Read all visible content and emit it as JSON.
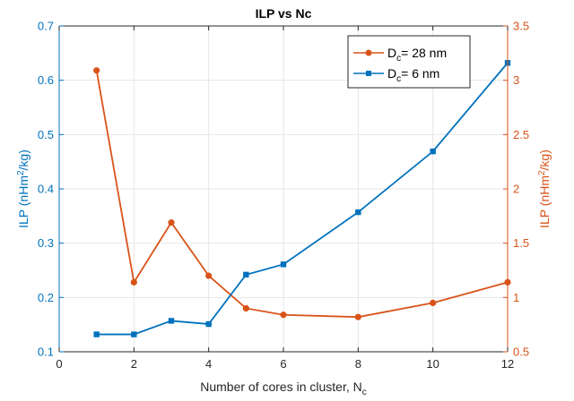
{
  "chart_data": {
    "type": "line",
    "title": "ILP vs Nc",
    "xlabel": {
      "main": "Number of cores in cluster, N",
      "sub": "c"
    },
    "ylabel_left": {
      "pre": "ILP (nHm",
      "sup": "2",
      "post": "/kg)"
    },
    "ylabel_right": {
      "pre": "ILP (nHm",
      "sup": "2",
      "post": "/kg)"
    },
    "xlim": [
      0,
      12
    ],
    "ylim_left": [
      0.1,
      0.7
    ],
    "ylim_right": [
      0.5,
      3.5
    ],
    "xticks": [
      0,
      2,
      4,
      6,
      8,
      10,
      12
    ],
    "yticks_left": [
      0.1,
      0.2,
      0.3,
      0.4,
      0.5,
      0.6,
      0.7
    ],
    "yticks_right": [
      0.5,
      1,
      1.5,
      2,
      2.5,
      3,
      3.5
    ],
    "grid": true,
    "legend_position": "top-right",
    "series": [
      {
        "name": {
          "pre": "D",
          "sub": "c",
          "post": "= 28 nm"
        },
        "axis": "right",
        "color": "#D95319",
        "marker": "circle",
        "x": [
          1,
          2,
          3,
          4,
          5,
          6,
          8,
          10,
          12
        ],
        "y": [
          3.09,
          1.14,
          1.69,
          1.2,
          0.9,
          0.84,
          0.82,
          0.95,
          1.14
        ]
      },
      {
        "name": {
          "pre": "D",
          "sub": "c",
          "post": "= 6 nm"
        },
        "axis": "left",
        "color": "#0072BD",
        "marker": "square",
        "x": [
          1,
          2,
          3,
          4,
          5,
          6,
          8,
          10,
          12
        ],
        "y": [
          0.132,
          0.132,
          0.157,
          0.151,
          0.242,
          0.261,
          0.357,
          0.469,
          0.632
        ]
      }
    ]
  }
}
